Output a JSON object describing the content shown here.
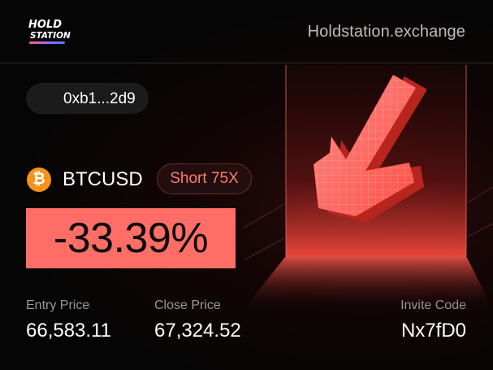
{
  "header": {
    "logo_line1": "HOLD",
    "logo_line2": "STATION",
    "site": "Holdstation.exchange"
  },
  "wallet": {
    "address": "0xb1...2d9"
  },
  "position": {
    "coin_symbol": "₿",
    "pair": "BTCUSD",
    "side_leverage": "Short 75X",
    "pnl": "-33.39%"
  },
  "stats": {
    "entry_label": "Entry Price",
    "entry_value": "66,583.11",
    "close_label": "Close Price",
    "close_value": "67,324.52",
    "invite_label": "Invite Code",
    "invite_value": "Nx7fD0"
  },
  "colors": {
    "accent_red": "#ff6e66",
    "bitcoin_orange": "#f7931a",
    "badge_text": "#ff7a72"
  },
  "icons": {
    "coin": "bitcoin-icon",
    "illustration": "down-arrow-icon"
  }
}
